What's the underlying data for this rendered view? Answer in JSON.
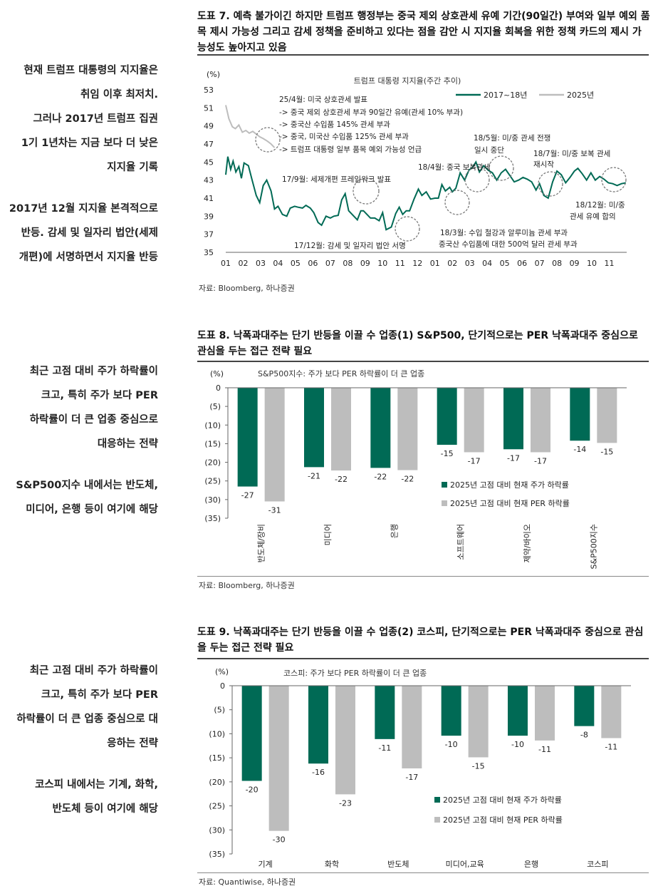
{
  "colors": {
    "teal": "#006a55",
    "gray": "#bdbdbd",
    "dashcircle": "#777777",
    "text": "#222222"
  },
  "fig7": {
    "title": "도표 7. 예측 불가이긴 하지만 트럼프 행정부는 중국 제외 상호관세 유예 기간(90일간) 부여와 일부 예외 품목 제시 가능성 그리고 감세 정책을 준비하고 있다는 점을 감안 시 지지율 회복을 위한 정책 카드의 제시 가능성도 높아지고 있음",
    "side": [
      "현재 트럼프 대통령의 지지율은",
      "취임 이후 최저치.",
      "그러나 2017년 트럼프 집권",
      "1기 1년차는 지금 보다 더 낮은",
      "지지율 기록",
      "2017년 12월 지지율 본격적으로",
      "반등. 감세 및 일자리 법안(세제",
      "개편)에 서명하면서 지지율 반등"
    ],
    "source": "자료: Bloomberg, 하나증권"
  },
  "fig8": {
    "title": "도표 8. 낙폭과대주는 단기 반등을 이끌 수 업종(1) S&P500, 단기적으로는 PER 낙폭과대주 중심으로 관심을 두는 접근 전략 필요",
    "side": [
      "최근 고점 대비 주가 하락률이",
      "크고, 특히 주가 보다 PER",
      "하락률이 더 큰 업종 중심으로",
      "대응하는 전략",
      "S&P500지수 내에서는 반도체,",
      "미디어, 은행 등이 여기에 해당"
    ],
    "source": "자료: Bloomberg, 하나증권"
  },
  "fig9": {
    "title": "도표 9. 낙폭과대주는 단기 반등을 이끌 수 업종(2) 코스피, 단기적으로는 PER 낙폭과대주 중심으로 관심을 두는 접근 전략 필요",
    "side": [
      "최근 고점 대비 주가 하락률이",
      "크고, 특히 주가 보다 PER",
      "하락률이 더 큰 업종 중심으로 대",
      "응하는 전략",
      "코스피 내에서는 기계, 화학,",
      "반도체 등이 여기에 해당"
    ],
    "source": "자료: Quantiwise, 하나증권"
  },
  "chart_data": [
    {
      "type": "line",
      "title": "트럼프 대통령 지지율(주간 추이)",
      "ylabel": "(%)",
      "ylim": [
        35,
        53
      ],
      "yticks": [
        35,
        37,
        39,
        41,
        43,
        45,
        47,
        49,
        51,
        53
      ],
      "x_ticks": [
        "01",
        "02",
        "03",
        "04",
        "05",
        "06",
        "07",
        "08",
        "09",
        "10",
        "11",
        "12",
        "01",
        "02",
        "03",
        "04",
        "05",
        "06",
        "07",
        "08",
        "09",
        "10",
        "11"
      ],
      "xlim": [
        1,
        24
      ],
      "series": [
        {
          "name": "2017~18년",
          "x": [
            1.0,
            1.12,
            1.28,
            1.42,
            1.58,
            1.75,
            1.9,
            2.05,
            2.3,
            2.5,
            2.75,
            2.95,
            3.15,
            3.35,
            3.6,
            3.8,
            4.0,
            4.25,
            4.5,
            4.7,
            4.95,
            5.15,
            5.4,
            5.6,
            5.85,
            6.05,
            6.3,
            6.5,
            6.75,
            7.0,
            7.2,
            7.45,
            7.65,
            7.85,
            8.05,
            8.3,
            8.55,
            8.75,
            8.9,
            9.1,
            9.3,
            9.55,
            9.8,
            10.0,
            10.2,
            10.5,
            10.75,
            10.95,
            11.15,
            11.35,
            11.55,
            11.8,
            12.05,
            12.25,
            12.5,
            12.75,
            13.0,
            13.2,
            13.4,
            13.6,
            13.85,
            14.0,
            14.2,
            14.45,
            14.7,
            14.95,
            15.15,
            15.35,
            15.55,
            15.8,
            16.05,
            16.3,
            16.55,
            16.8,
            17.05,
            17.3,
            17.55,
            17.8,
            18.05,
            18.3,
            18.55,
            18.8,
            19.0,
            19.25,
            19.5,
            19.75,
            20.0,
            20.25,
            20.5,
            20.75,
            21.0,
            21.2,
            21.45,
            21.7,
            21.95,
            22.2,
            22.45,
            22.7,
            22.95,
            23.2,
            23.45,
            23.7,
            23.95
          ],
          "values": [
            43.6,
            45.6,
            44.2,
            45.1,
            43.9,
            44.5,
            43.2,
            44.9,
            44.6,
            43.1,
            41.3,
            40.5,
            42.4,
            43.0,
            41.8,
            39.8,
            40.1,
            39.2,
            39.0,
            39.9,
            40.1,
            40.0,
            39.9,
            40.2,
            39.9,
            39.4,
            38.3,
            38.0,
            39.0,
            38.8,
            39.0,
            39.1,
            40.8,
            41.5,
            39.6,
            39.1,
            38.6,
            39.6,
            39.6,
            39.2,
            38.8,
            38.8,
            38.5,
            39.4,
            37.5,
            37.8,
            39.3,
            40.0,
            39.2,
            39.6,
            39.6,
            40.9,
            42.0,
            41.3,
            41.7,
            40.9,
            41.0,
            41.0,
            42.5,
            41.8,
            42.2,
            41.7,
            42.1,
            43.8,
            43.0,
            44.1,
            44.4,
            45.0,
            43.9,
            44.6,
            44.1,
            43.8,
            43.0,
            43.8,
            44.2,
            43.5,
            42.8,
            43.0,
            43.3,
            43.1,
            42.8,
            41.9,
            42.6,
            41.3,
            41.0,
            42.8,
            44.0,
            43.6,
            42.7,
            43.3,
            44.0,
            44.3,
            43.7,
            43.0,
            43.8,
            43.0,
            43.4,
            43.1,
            42.7,
            42.6,
            42.4,
            42.6,
            42.7
          ]
        },
        {
          "name": "2025년",
          "x": [
            1.0,
            1.18,
            1.38,
            1.55,
            1.75,
            1.95,
            2.15,
            2.35,
            2.55,
            2.75,
            2.95,
            3.15,
            3.4,
            3.6,
            3.8
          ],
          "values": [
            51.3,
            49.8,
            48.9,
            48.7,
            49.1,
            48.3,
            48.5,
            48.2,
            48.4,
            48.1,
            47.8,
            47.6,
            47.3,
            47.0,
            46.6
          ]
        }
      ],
      "legend": "top-right",
      "annotations": [
        "25/4월: 미국 상호관세 발표",
        "-> 중국 제외 상호관세 부과 90일간 유예(관세 10% 부과)",
        "-> 중국산 수입품 145% 관세 부과",
        "-> 중국, 미국산 수입품 125% 관세 부과",
        "-> 트럼프 대통령 일부 품목 예외 가능성 언급",
        "17/9월: 세제개편 프레임워크 발표",
        "17/12월: 감세 및 일자리 법안 서명",
        "18/3월: 수입 철강과 알루미늄 관세 부과",
        "중국산 수입품에 대한 500억 달러 관세 부과",
        "18/4월: 중국 보복관세",
        "18/5월: 미/중 관세 전쟁",
        "일시 중단",
        "18/7월: 미/중 보복 관세",
        "재시작",
        "18/12월: 미/중",
        "관세 유예 합의"
      ]
    },
    {
      "type": "bar",
      "title": "S&P500지수: 주가 보다 PER 하락률이 더 큰 업종",
      "ylabel": "(%)",
      "ylim": [
        -35,
        0
      ],
      "yticks": [
        "0",
        "(5)",
        "(10)",
        "(15)",
        "(20)",
        "(25)",
        "(30)",
        "(35)"
      ],
      "categories": [
        "반도체/장비",
        "미디어",
        "은행",
        "소프트웨어",
        "제약/바이오",
        "S&P500지수"
      ],
      "series": [
        {
          "name": "2025년 고점 대비 현재 주가 하락률",
          "values": [
            -26.5,
            -21.3,
            -21.5,
            -15.3,
            -16.5,
            -14.2
          ],
          "labels": [
            "-27",
            "-21",
            "-22",
            "-15",
            "-17",
            "-14"
          ]
        },
        {
          "name": "2025년 고점 대비 현재 PER 하락률",
          "values": [
            -30.5,
            -22.2,
            -22.1,
            -17.3,
            -17.3,
            -14.8
          ],
          "labels": [
            "-31",
            "-22",
            "-22",
            "-17",
            "-17",
            "-15"
          ]
        }
      ],
      "legend": "bottom-right"
    },
    {
      "type": "bar",
      "title": "코스피: 주가 보다 PER 하락률이 더 큰 업종",
      "ylabel": "(%)",
      "ylim": [
        -35,
        0
      ],
      "yticks": [
        "0",
        "(5)",
        "(10)",
        "(15)",
        "(20)",
        "(25)",
        "(30)",
        "(35)"
      ],
      "categories": [
        "기계",
        "화학",
        "반도체",
        "미디어,교육",
        "은행",
        "코스피"
      ],
      "series": [
        {
          "name": "2025년 고점 대비 현재 주가 하락률",
          "values": [
            -19.8,
            -16.2,
            -11.1,
            -10.4,
            -10.4,
            -8.4
          ],
          "labels": [
            "-20",
            "-16",
            "-11",
            "-10",
            "-10",
            "-8"
          ]
        },
        {
          "name": "2025년 고점 대비 현재 PER 하락률",
          "values": [
            -30.2,
            -22.6,
            -17.2,
            -14.9,
            -11.4,
            -10.9
          ],
          "labels": [
            "-30",
            "-23",
            "-17",
            "-15",
            "-11",
            "-11"
          ]
        }
      ],
      "legend": "bottom-right"
    }
  ]
}
